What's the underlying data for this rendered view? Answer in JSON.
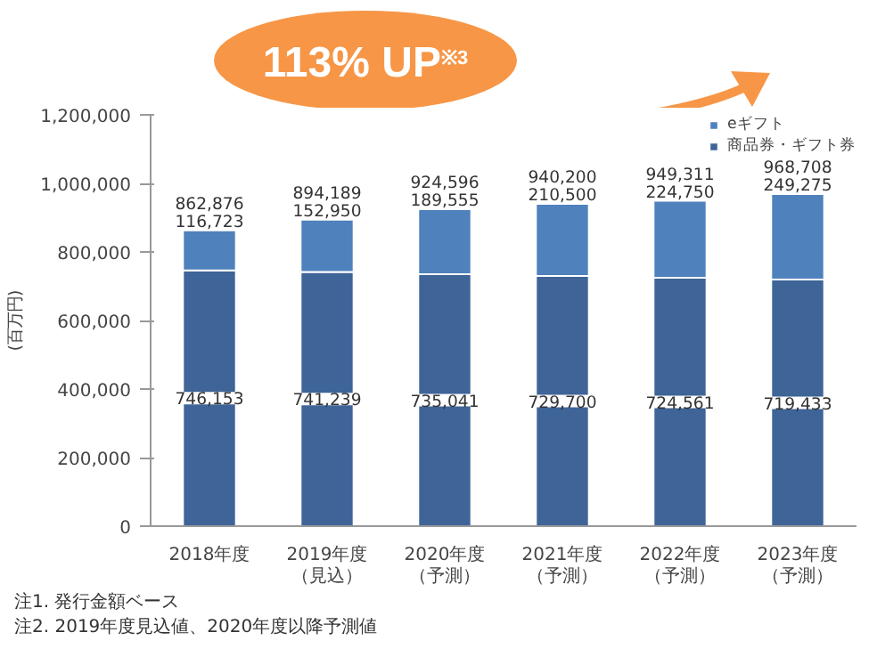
{
  "chart_data": {
    "type": "bar",
    "stacked": true,
    "ylabel": "(百万円)",
    "categories": [
      "2018年度",
      "2019年度（見込）",
      "2020年度（予測）",
      "2021年度（予測）",
      "2022年度（予測）",
      "2023年度（予測）"
    ],
    "series": [
      {
        "name": "商品券・ギフト券",
        "color": "#3e6498",
        "values": [
          746153,
          741239,
          735041,
          729700,
          724561,
          719433
        ],
        "value_labels": [
          "746,153",
          "741,239",
          "735,041",
          "729,700",
          "724,561",
          "719,433"
        ]
      },
      {
        "name": "eギフト",
        "color": "#4f81bd",
        "values": [
          116723,
          152950,
          189555,
          210500,
          224750,
          249275
        ],
        "value_labels": [
          "116,723",
          "152,950",
          "189,555",
          "210,500",
          "224,750",
          "249,275"
        ]
      }
    ],
    "totals": [
      "862,876",
      "894,189",
      "924,596",
      "940,200",
      "949,311",
      "968,708"
    ],
    "ylim": [
      0,
      1200000
    ],
    "yticks": [
      {
        "value": 0,
        "label": "0"
      },
      {
        "value": 200000,
        "label": "200,000"
      },
      {
        "value": 400000,
        "label": "400,000"
      },
      {
        "value": 600000,
        "label": "600,000"
      },
      {
        "value": 800000,
        "label": "800,000"
      },
      {
        "value": 1000000,
        "label": "1,000,000"
      },
      {
        "value": 1200000,
        "label": "1,200,000"
      }
    ],
    "grid": false,
    "legend": "top right",
    "annotations": [
      "113% UP$^{※3}$",
      "注1. 発行金額ベース",
      "注2. 2019年度見込値、2020年度以降予測値"
    ]
  }
}
